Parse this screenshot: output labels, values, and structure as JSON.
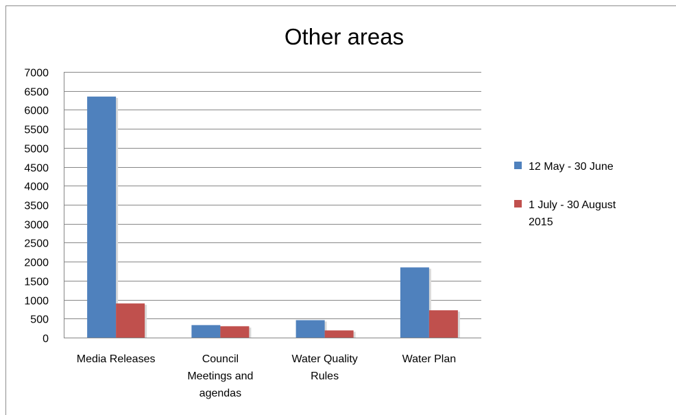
{
  "chart_data": {
    "type": "bar",
    "title": "Other areas",
    "xlabel": "",
    "ylabel": "",
    "categories": [
      "Media Releases",
      "Council Meetings and agendas",
      "Water Quality Rules",
      "Water Plan"
    ],
    "category_lines": [
      [
        "Media Releases"
      ],
      [
        "Council",
        "Meetings and",
        "agendas"
      ],
      [
        "Water Quality",
        "Rules"
      ],
      [
        "Water Plan"
      ]
    ],
    "series": [
      {
        "name": "12 May - 30 June",
        "name_lines": [
          "12 May - 30 June"
        ],
        "color": "#4F81BD",
        "values": [
          6350,
          330,
          460,
          1850
        ]
      },
      {
        "name": "1 July - 30 August 2015",
        "name_lines": [
          "1 July - 30 August",
          "2015"
        ],
        "color": "#C0504D",
        "values": [
          900,
          300,
          190,
          720
        ]
      }
    ],
    "ylim": [
      0,
      7000
    ],
    "yticks": [
      0,
      500,
      1000,
      1500,
      2000,
      2500,
      3000,
      3500,
      4000,
      4500,
      5000,
      5500,
      6000,
      6500,
      7000
    ],
    "grid": true,
    "legend_position": "right"
  }
}
